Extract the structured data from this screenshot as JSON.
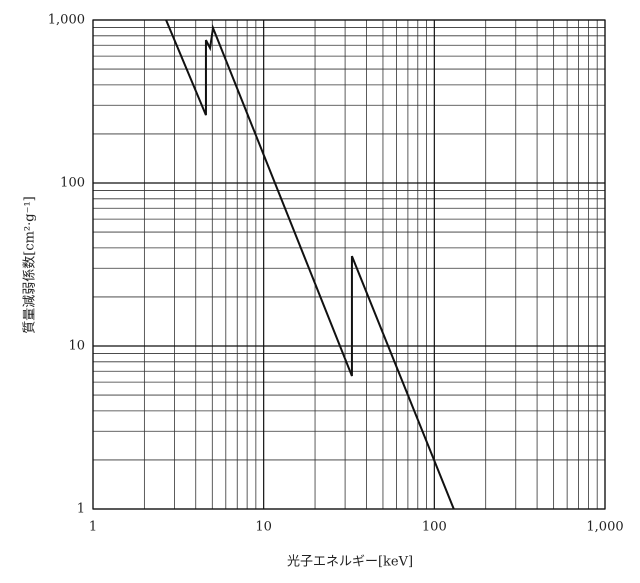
{
  "chart_data": {
    "type": "line",
    "xlabel": "光子エネルギー[keV]",
    "ylabel": "質量減弱係数[cm²·g⁻¹]",
    "x": [
      2.68,
      4.59,
      4.59,
      4.85,
      5.05,
      5.33,
      32.9,
      32.9,
      130
    ],
    "values": [
      1000,
      261,
      753,
      673,
      893,
      776,
      6.55,
      35.6,
      1
    ],
    "color": "#111111",
    "xlog": true,
    "ylog": true,
    "grid": true,
    "minor_grid": true,
    "xlim": [
      1,
      1000
    ],
    "ylim": [
      1,
      1000
    ],
    "xticks": [
      1,
      10,
      100,
      {
        "value": 1000,
        "label": "1,000"
      }
    ],
    "yticks": [
      1,
      10,
      100,
      {
        "value": 1000,
        "label": "1,000"
      }
    ]
  }
}
